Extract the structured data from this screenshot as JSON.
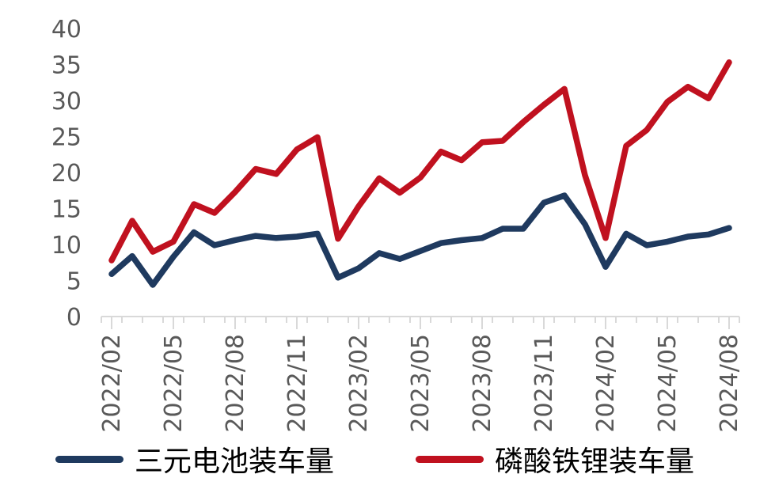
{
  "chart_data": {
    "type": "line",
    "x": [
      "2022/02",
      "2022/03",
      "2022/04",
      "2022/05",
      "2022/06",
      "2022/07",
      "2022/08",
      "2022/09",
      "2022/10",
      "2022/11",
      "2022/12",
      "2023/01",
      "2023/02",
      "2023/03",
      "2023/04",
      "2023/05",
      "2023/06",
      "2023/07",
      "2023/08",
      "2023/09",
      "2023/10",
      "2023/11",
      "2023/12",
      "2024/01",
      "2024/02",
      "2024/03",
      "2024/04",
      "2024/05",
      "2024/06",
      "2024/07",
      "2024/08"
    ],
    "tick_labels": [
      "2022/02",
      "2022/05",
      "2022/08",
      "2022/11",
      "2023/02",
      "2023/05",
      "2023/08",
      "2023/11",
      "2024/02",
      "2024/05",
      "2024/08"
    ],
    "yticks": [
      "0",
      "5",
      "10",
      "15",
      "20",
      "25",
      "30",
      "35",
      "40"
    ],
    "ylim": [
      0,
      40
    ],
    "series": [
      {
        "name": "三元电池装车量",
        "color": "#1f3a5f",
        "values": [
          5.9,
          8.4,
          4.4,
          8.3,
          11.7,
          9.9,
          10.6,
          11.2,
          10.9,
          11.1,
          11.5,
          5.4,
          6.7,
          8.8,
          8.0,
          9.1,
          10.2,
          10.6,
          10.9,
          12.2,
          12.2,
          15.8,
          16.8,
          12.8,
          6.9,
          11.5,
          9.9,
          10.4,
          11.1,
          11.4,
          12.3
        ]
      },
      {
        "name": "磷酸铁锂装车量",
        "color": "#c0111f",
        "values": [
          7.8,
          13.3,
          9.0,
          10.4,
          15.6,
          14.4,
          17.3,
          20.5,
          19.8,
          23.2,
          24.9,
          10.8,
          15.3,
          19.2,
          17.2,
          19.3,
          22.9,
          21.7,
          24.2,
          24.4,
          27.0,
          29.4,
          31.6,
          19.6,
          10.9,
          23.7,
          25.9,
          29.8,
          31.9,
          30.3,
          35.3
        ]
      }
    ],
    "legend_position": "bottom",
    "grid": false
  }
}
